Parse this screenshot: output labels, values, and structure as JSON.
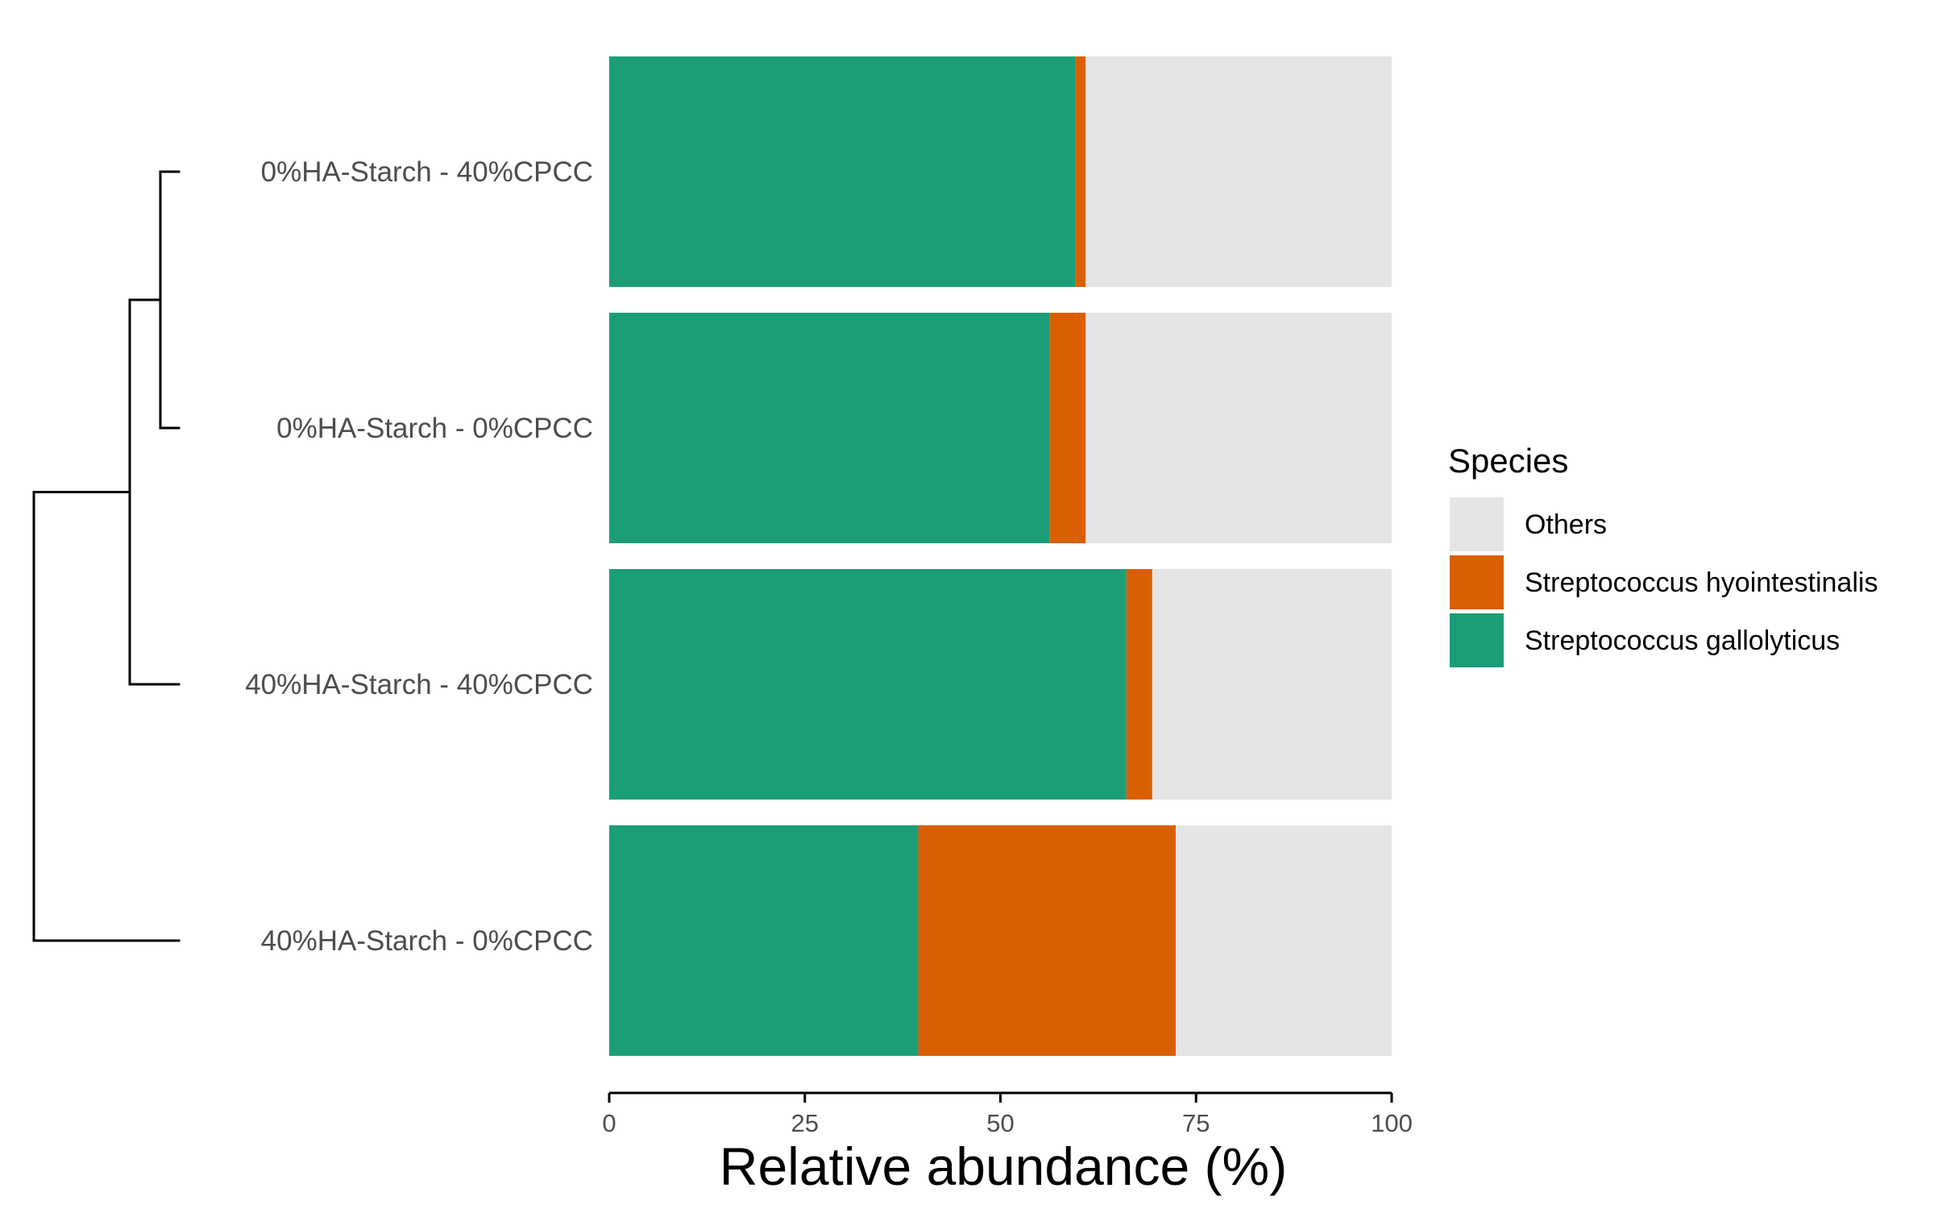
{
  "chart_data": {
    "type": "bar",
    "orientation": "horizontal",
    "stacked": true,
    "categories": [
      "0%HA-Starch - 40%CPCC",
      "0%HA-Starch - 0%CPCC",
      "40%HA-Starch - 40%CPCC",
      "40%HA-Starch - 0%CPCC"
    ],
    "series": [
      {
        "name": "Streptococcus gallolyticus",
        "color": "#1b9e77",
        "values": [
          59.6,
          56.3,
          66.1,
          39.5
        ]
      },
      {
        "name": "Streptococcus hyointestinalis",
        "color": "#d95f02",
        "values": [
          1.3,
          4.6,
          3.3,
          32.9
        ]
      },
      {
        "name": "Others",
        "color": "#e5e5e5",
        "values": [
          39.1,
          39.1,
          30.6,
          27.6
        ]
      }
    ],
    "xlabel": "Relative abundance (%)",
    "ylabel": "",
    "xlim": [
      0,
      100
    ],
    "xticks": [
      "0",
      "25",
      "50",
      "75",
      "100"
    ],
    "grid": false,
    "legend": {
      "title": "Species",
      "placement": "right",
      "entries": [
        "Others",
        "Streptococcus hyointestinalis",
        "Streptococcus gallolyticus"
      ],
      "colors": [
        "#e5e5e5",
        "#d95f02",
        "#1b9e77"
      ]
    },
    "dendrogram": {
      "placement": "left",
      "structure": "((0%HA-Starch - 40%CPCC, 0%HA-Starch - 0%CPCC), 40%HA-Starch - 40%CPCC), 40%HA-Starch - 0%CPCC"
    }
  }
}
